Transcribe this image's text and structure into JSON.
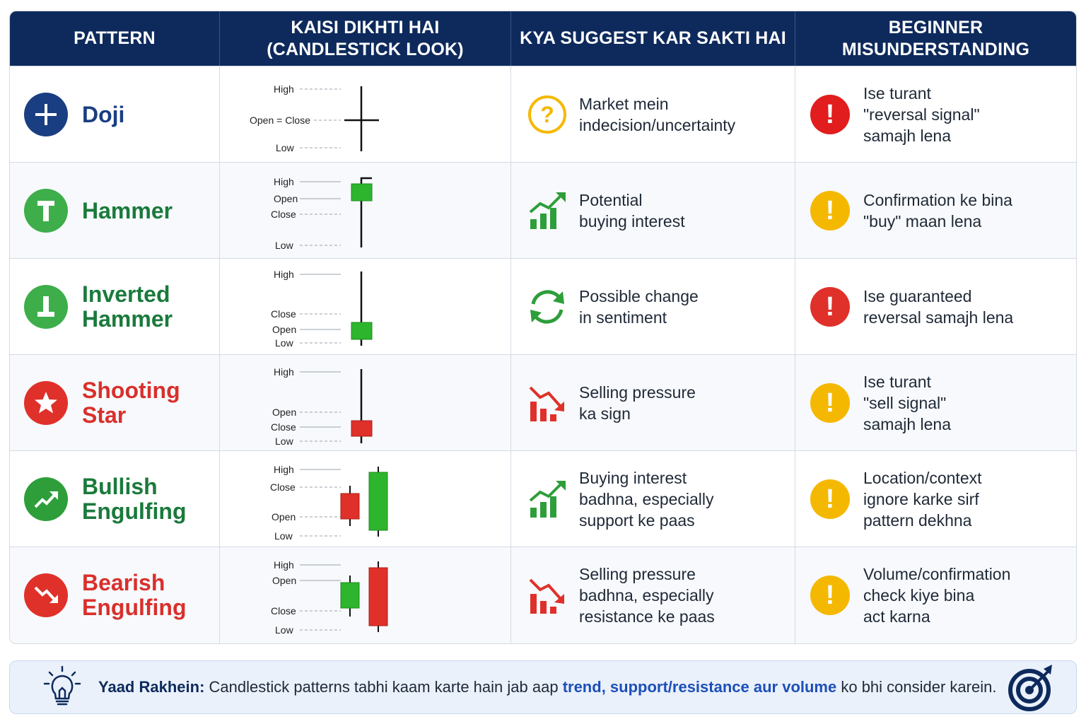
{
  "headers": [
    "PATTERN",
    "KAISI DIKHTI HAI\n(CANDLESTICK LOOK)",
    "KYA SUGGEST KAR SAKTI HAI",
    "BEGINNER MISUNDERSTANDING"
  ],
  "rows": [
    {
      "name": "Doji",
      "color": "#1a3e82",
      "pattern_icon": "plus-icon",
      "candle_labels": [
        "High",
        "Open = Close",
        "Low"
      ],
      "suggest": "Market mein\nindecision/uncertainty",
      "suggest_icon": "question-circle-icon",
      "mis": "Ise turant\n\"reversal signal\"\nsamajh lena",
      "mis_icon": "exclamation-icon",
      "mis_color": "#e11d1d"
    },
    {
      "name": "Hammer",
      "color": "#1a7a3c",
      "pattern_icon": "hammer-icon",
      "candle_labels": [
        "High",
        "Open",
        "Close",
        "Low"
      ],
      "suggest": "Potential\nbuying interest",
      "suggest_icon": "trend-up-icon",
      "mis": "Confirmation ke bina\n\"buy\" maan lena",
      "mis_icon": "exclamation-icon",
      "mis_color": "#f5b800"
    },
    {
      "name": "Inverted\nHammer",
      "color": "#1a7a3c",
      "pattern_icon": "inverted-hammer-icon",
      "candle_labels": [
        "High",
        "Close",
        "Open",
        "Low"
      ],
      "suggest": "Possible change\nin sentiment",
      "suggest_icon": "refresh-icon",
      "mis": "Ise guaranteed\nreversal samajh lena",
      "mis_icon": "exclamation-icon",
      "mis_color": "#e0302a"
    },
    {
      "name": "Shooting\nStar",
      "color": "#d9302c",
      "pattern_icon": "star-icon",
      "candle_labels": [
        "High",
        "Open",
        "Close",
        "Low"
      ],
      "suggest": "Selling pressure\nka sign",
      "suggest_icon": "trend-down-icon",
      "mis": "Ise turant\n\"sell signal\"\nsamajh lena",
      "mis_icon": "exclamation-icon",
      "mis_color": "#f5b800"
    },
    {
      "name": "Bullish\nEngulfing",
      "color": "#1a7a3c",
      "pattern_icon": "arrow-up-right-icon",
      "candle_labels": [
        "High",
        "Close",
        "Open",
        "Low"
      ],
      "suggest": "Buying interest\nbadhna, especially\nsupport ke paas",
      "suggest_icon": "trend-up-icon",
      "mis": "Location/context\nignore karke sirf\npattern dekhna",
      "mis_icon": "exclamation-icon",
      "mis_color": "#f5b800"
    },
    {
      "name": "Bearish\nEngulfing",
      "color": "#d9302c",
      "pattern_icon": "arrow-down-right-icon",
      "candle_labels": [
        "High",
        "Open",
        "Close",
        "Low"
      ],
      "suggest": "Selling pressure\nbadhna, especially\nresistance ke paas",
      "suggest_icon": "trend-down-icon",
      "mis": "Volume/confirmation\ncheck kiye bina\nact karna",
      "mis_icon": "exclamation-icon",
      "mis_color": "#f5b800"
    }
  ],
  "footer": {
    "label": "Yaad Rakhein:",
    "text_before": " Candlestick patterns tabhi kaam karte hain jab aap ",
    "highlight": "trend, support/resistance aur volume",
    "text_after": " ko bhi consider karein.",
    "left_icon": "lightbulb-icon",
    "right_icon": "target-icon"
  },
  "colors": {
    "header_bg": "#0e2a5c",
    "bull": "#2db52d",
    "bear": "#e0302a"
  }
}
